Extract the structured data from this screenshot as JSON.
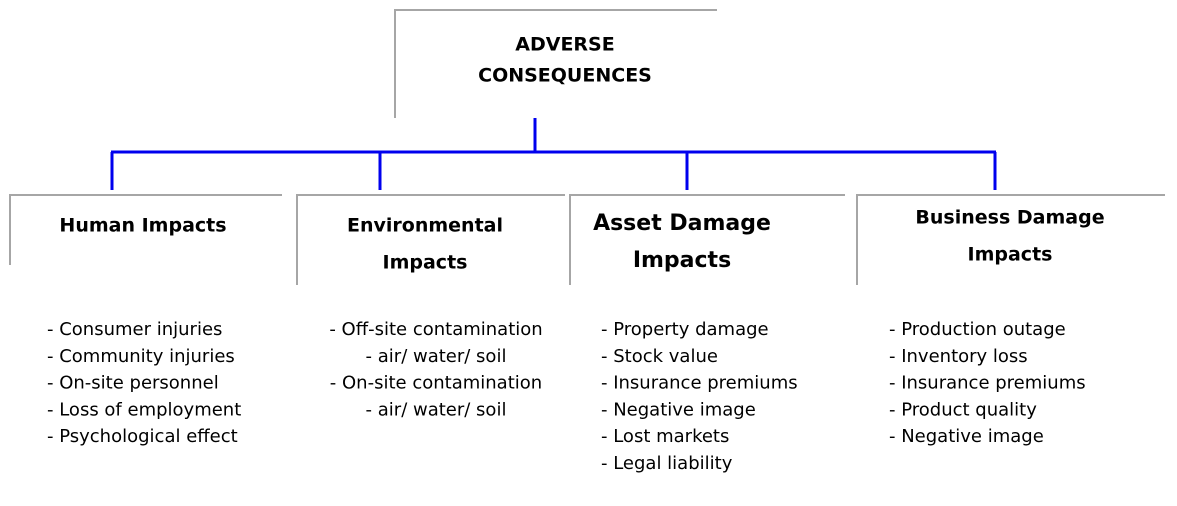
{
  "root": {
    "title_lines": [
      "ADVERSE",
      "CONSEQUENCES"
    ]
  },
  "categories": [
    {
      "title_lines": [
        "Human Impacts"
      ],
      "items": [
        "- Consumer injuries",
        "- Community injuries",
        "- On-site personnel",
        "- Loss of employment",
        "- Psychological effect"
      ]
    },
    {
      "title_lines": [
        "Environmental",
        "Impacts"
      ],
      "items": [
        "- Off-site contamination",
        "- air/ water/ soil",
        "- On-site contamination",
        "- air/ water/ soil"
      ]
    },
    {
      "title_lines": [
        "Asset Damage",
        "Impacts"
      ],
      "items": [
        "- Property damage",
        "- Stock value",
        "- Insurance premiums",
        "- Negative image",
        "- Lost markets",
        "- Legal liability"
      ]
    },
    {
      "title_lines": [
        "Business Damage",
        "Impacts"
      ],
      "items": [
        "- Production outage",
        "- Inventory loss",
        "- Insurance premiums",
        "- Product quality",
        "- Negative image"
      ]
    }
  ]
}
